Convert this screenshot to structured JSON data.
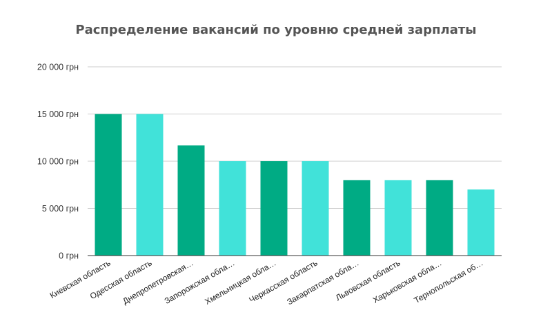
{
  "chart_data": {
    "type": "bar",
    "title": "Распределение вакансий по уровню средней зарплаты",
    "xlabel": "",
    "ylabel": "",
    "categories": [
      "Киевская область",
      "Одесская область",
      "Днепропетровская…",
      "Запорожская обла…",
      "Хмельницкая обла…",
      "Черкасская область",
      "Закарпатская обла…",
      "Львовская область",
      "Харьковская обла…",
      "Тернопольская об…"
    ],
    "values": [
      15000,
      15000,
      11667,
      10000,
      10000,
      10000,
      8000,
      8000,
      8000,
      7000
    ],
    "ylim": [
      0,
      20000
    ],
    "yticks": [
      {
        "value": 0,
        "label": "0 грн"
      },
      {
        "value": 5000,
        "label": "5 000 грн"
      },
      {
        "value": 10000,
        "label": "10 000 грн"
      },
      {
        "value": 15000,
        "label": "15 000 грн"
      },
      {
        "value": 20000,
        "label": "20 000 грн"
      }
    ],
    "grid": true,
    "legend": "none",
    "colors": [
      "#00ab84",
      "#41e2d9"
    ]
  }
}
